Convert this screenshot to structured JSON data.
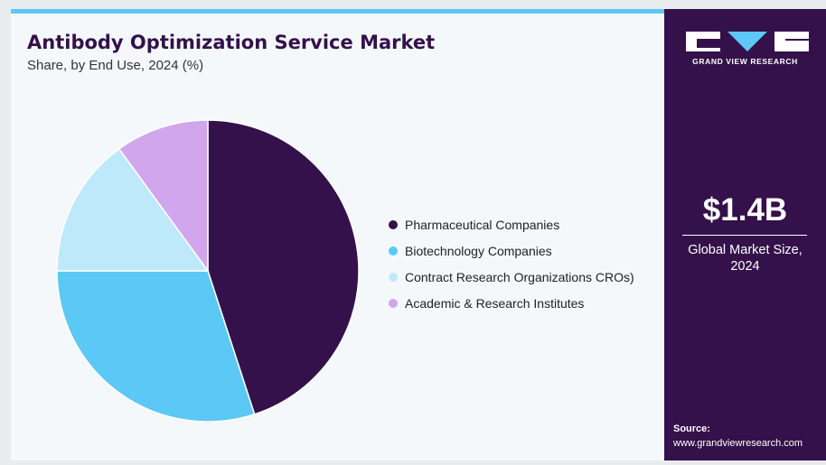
{
  "chart_data": {
    "type": "pie",
    "title": "Antibody Optimization Service Market",
    "subtitle": "Share, by End Use, 2024 (%)",
    "categories": [
      "Pharmaceutical Companies",
      "Biotechnology Companies",
      "Contract Research Organizations CROs)",
      "Academic & Research Institutes"
    ],
    "values": [
      45,
      30,
      15,
      10
    ],
    "colors": [
      "#34114a",
      "#5bc8f5",
      "#bde9fb",
      "#d1a6ec"
    ],
    "legend_position": "right"
  },
  "side_panel": {
    "brand": "GRAND VIEW RESEARCH",
    "market_value": "$1.4B",
    "market_label_line1": "Global Market Size,",
    "market_label_line2": "2024",
    "source_label": "Source:",
    "source_url": "www.grandviewresearch.com"
  }
}
